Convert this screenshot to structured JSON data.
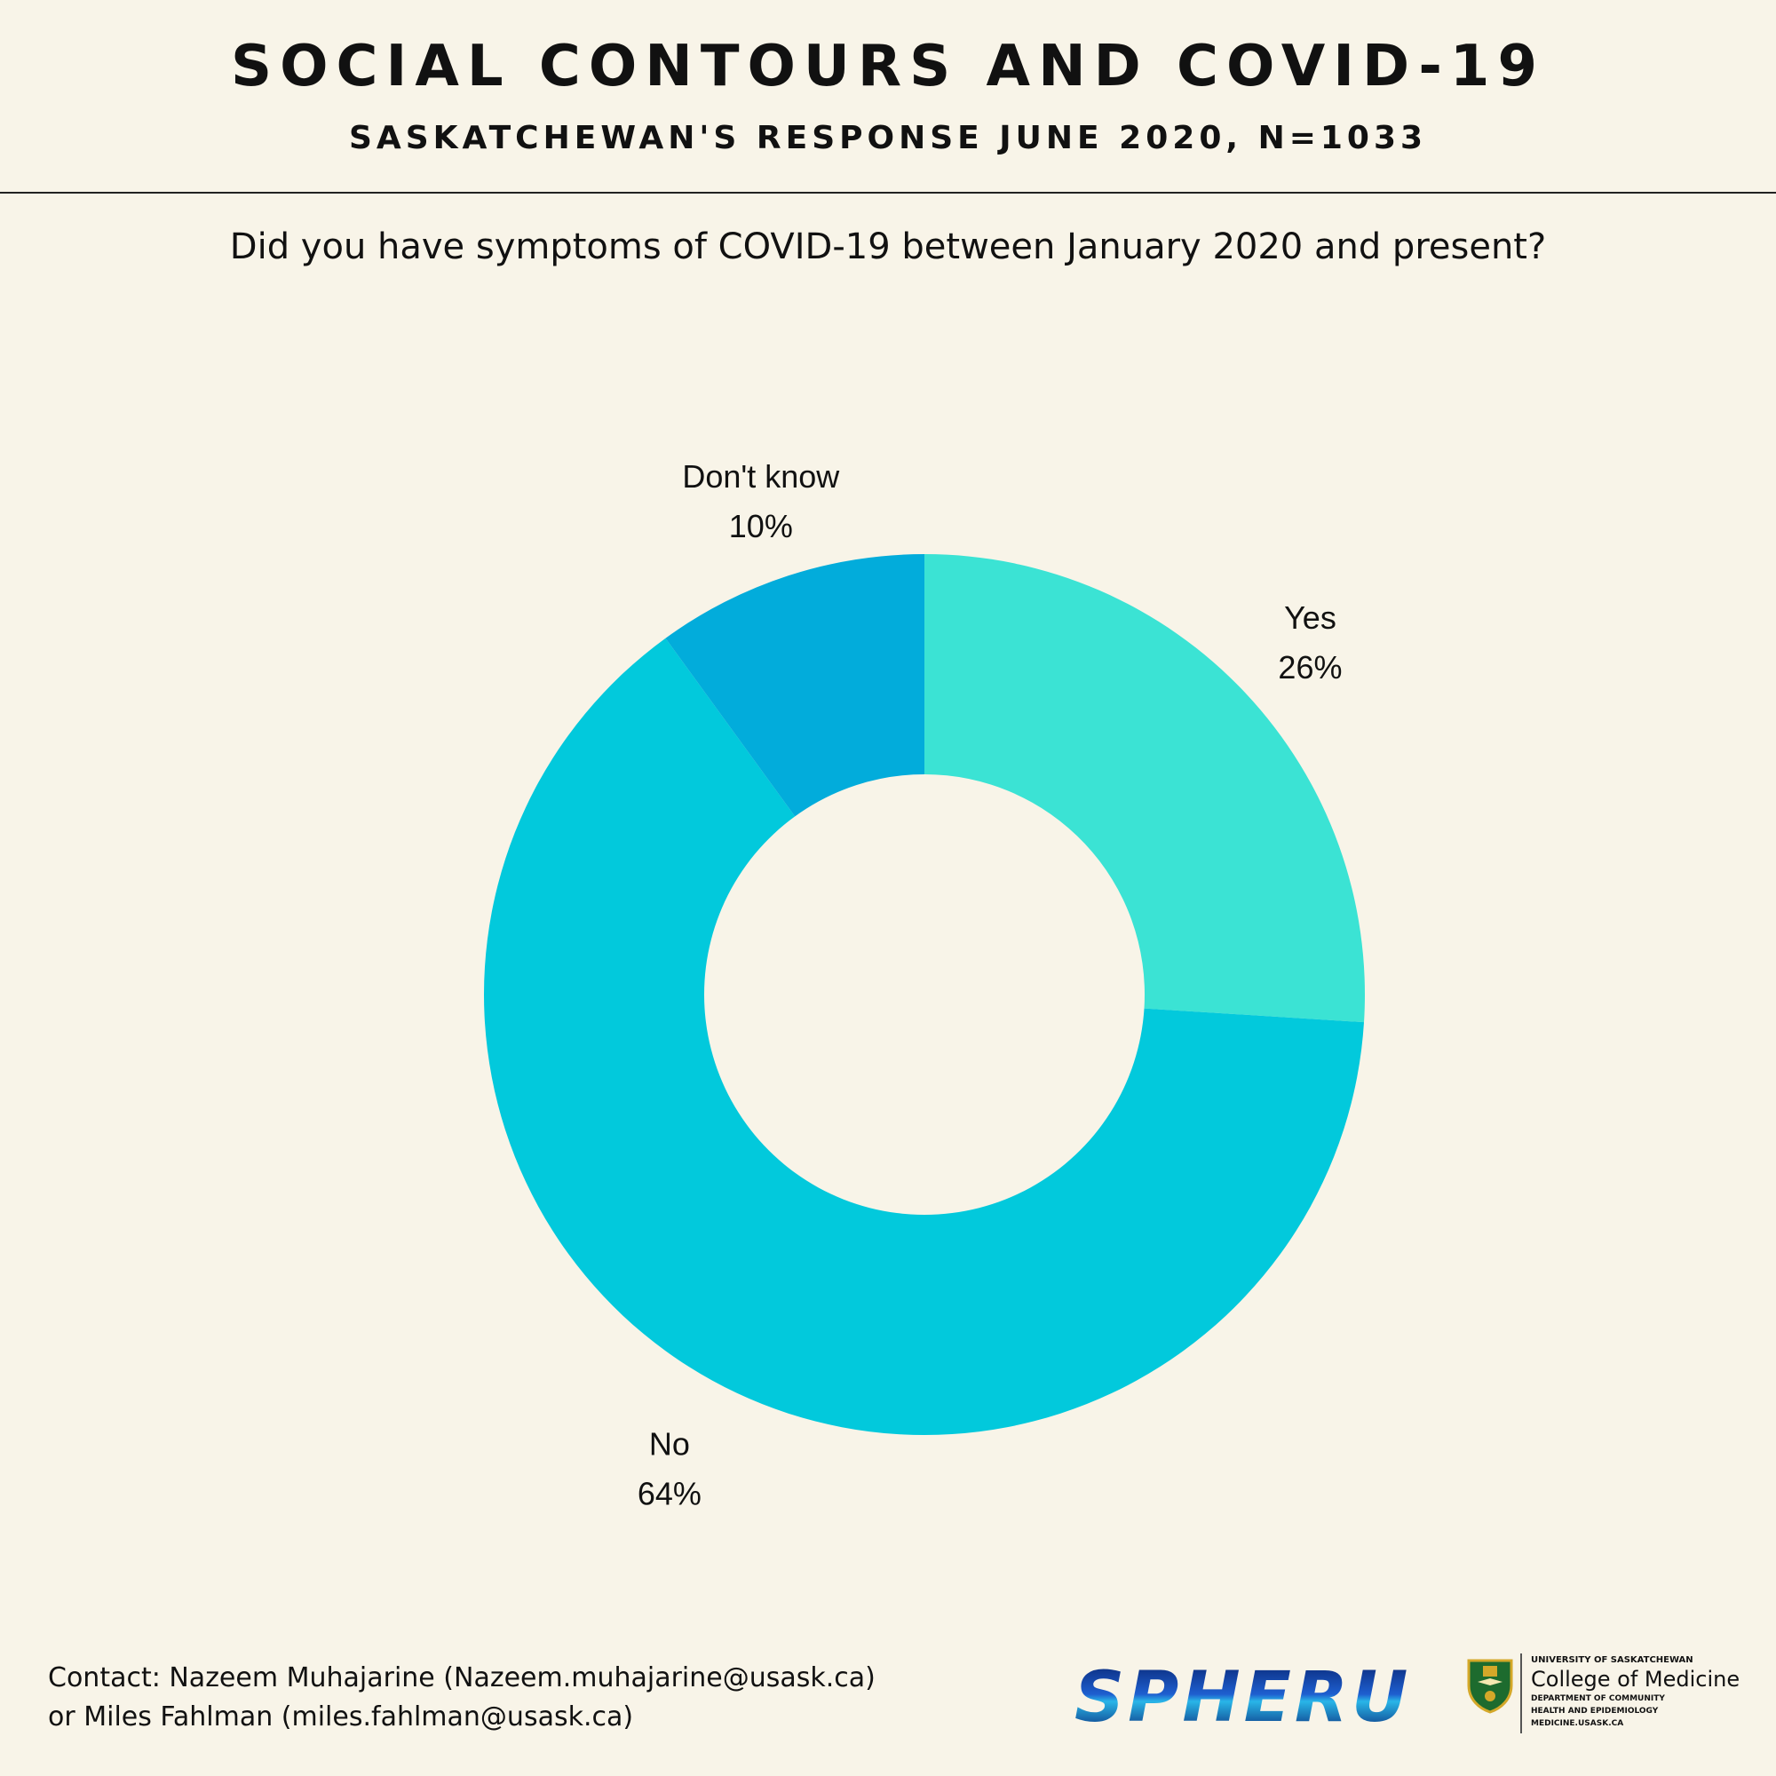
{
  "header": {
    "title": "SOCIAL CONTOURS AND COVID-19",
    "subtitle": "SASKATCHEWAN'S RESPONSE JUNE 2020, N=1033"
  },
  "question": "Did you have symptoms of COVID-19 between January 2020 and present?",
  "chart_data": {
    "type": "pie",
    "variant": "donut",
    "title": "Did you have symptoms of COVID-19 between January 2020 and present?",
    "categories": [
      "Yes",
      "No",
      "Don't know"
    ],
    "values": [
      26,
      64,
      10
    ],
    "labels": [
      "26%",
      "64%",
      "10%"
    ],
    "colors": [
      "#3be3d4",
      "#02c9dc",
      "#02acdb"
    ],
    "start": "12 o'clock, clockwise"
  },
  "footer": {
    "contact_line1": "Contact: Nazeem Muhajarine (Nazeem.muhajarine@usask.ca)",
    "contact_line2": "or Miles Fahlman (miles.fahlman@usask.ca)"
  },
  "logos": {
    "spheru": "SPHERU",
    "usask_line1": "UNIVERSITY OF SASKATCHEWAN",
    "usask_line2": "College of Medicine",
    "usask_line3": "DEPARTMENT OF COMMUNITY",
    "usask_line4": "HEALTH AND EPIDEMIOLOGY",
    "usask_line5": "MEDICINE.USASK.CA"
  }
}
